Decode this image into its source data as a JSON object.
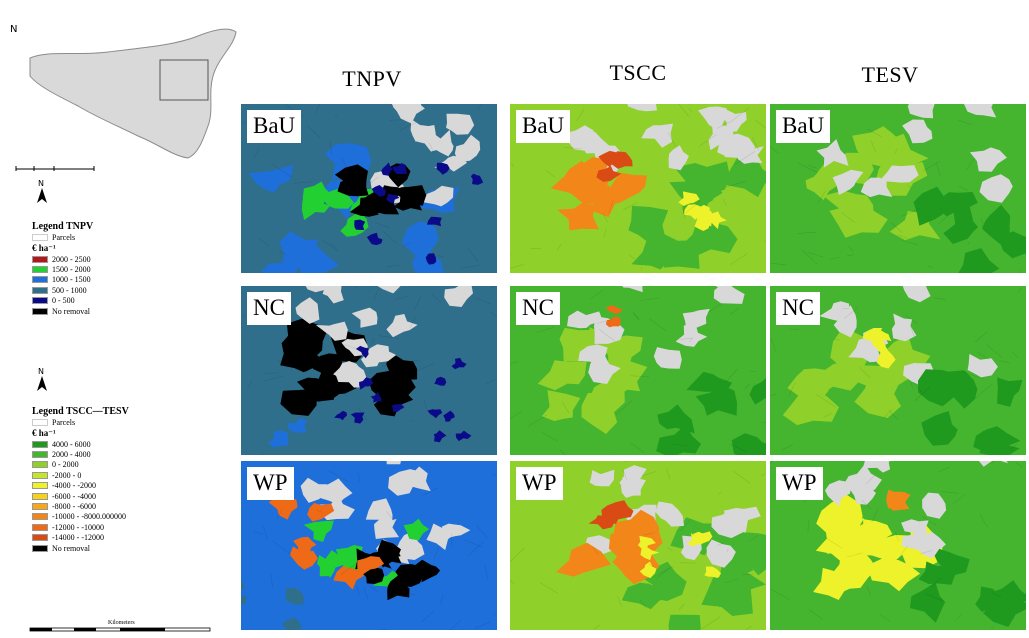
{
  "overview": {
    "north_symbol": "N"
  },
  "north_arrow_label": "N",
  "legend_tnpv": {
    "title": "Legend TNPV",
    "parcels_label": "Parcels",
    "unit": "€ ha⁻¹",
    "items": [
      {
        "label": "2000 - 2500",
        "color": "#b3161b"
      },
      {
        "label": "1500 - 2000",
        "color": "#22d032"
      },
      {
        "label": "1000 - 1500",
        "color": "#1e6fd9"
      },
      {
        "label": "500 - 1000",
        "color": "#2f6f8c"
      },
      {
        "label": "0 - 500",
        "color": "#0b0b8a"
      },
      {
        "label": "No removal",
        "color": "#000000"
      }
    ]
  },
  "legend_tscc": {
    "title": "Legend TSCC—TESV",
    "parcels_label": "Parcels",
    "unit": "€ ha⁻¹",
    "items": [
      {
        "label": "4000 - 6000",
        "color": "#1f9a1f"
      },
      {
        "label": "2000 - 4000",
        "color": "#45b52f"
      },
      {
        "label": "0 - 2000",
        "color": "#8fd12a"
      },
      {
        "label": "-2000 - 0",
        "color": "#c6e52a"
      },
      {
        "label": "-4000 - -2000",
        "color": "#eef22a"
      },
      {
        "label": "-6000 - -4000",
        "color": "#f7d21d"
      },
      {
        "label": "-8000 - -6000",
        "color": "#f7a81a"
      },
      {
        "label": "-10000 - -8000.000000",
        "color": "#f28618"
      },
      {
        "label": "-12000 - -10000",
        "color": "#ef6a16"
      },
      {
        "label": "-14000 - -12000",
        "color": "#d94a14"
      },
      {
        "label": "No removal",
        "color": "#000000"
      }
    ]
  },
  "bottom_scale_label": "Kilometers",
  "columns": [
    "TNPV",
    "TSCC",
    "TESV"
  ],
  "rows": [
    "BaU",
    "NC",
    "WP"
  ],
  "colors": {
    "tnpv_base": "#2f6f8c",
    "green_base": "#4fb62b",
    "parcel_gray": "#d8d8d8"
  }
}
